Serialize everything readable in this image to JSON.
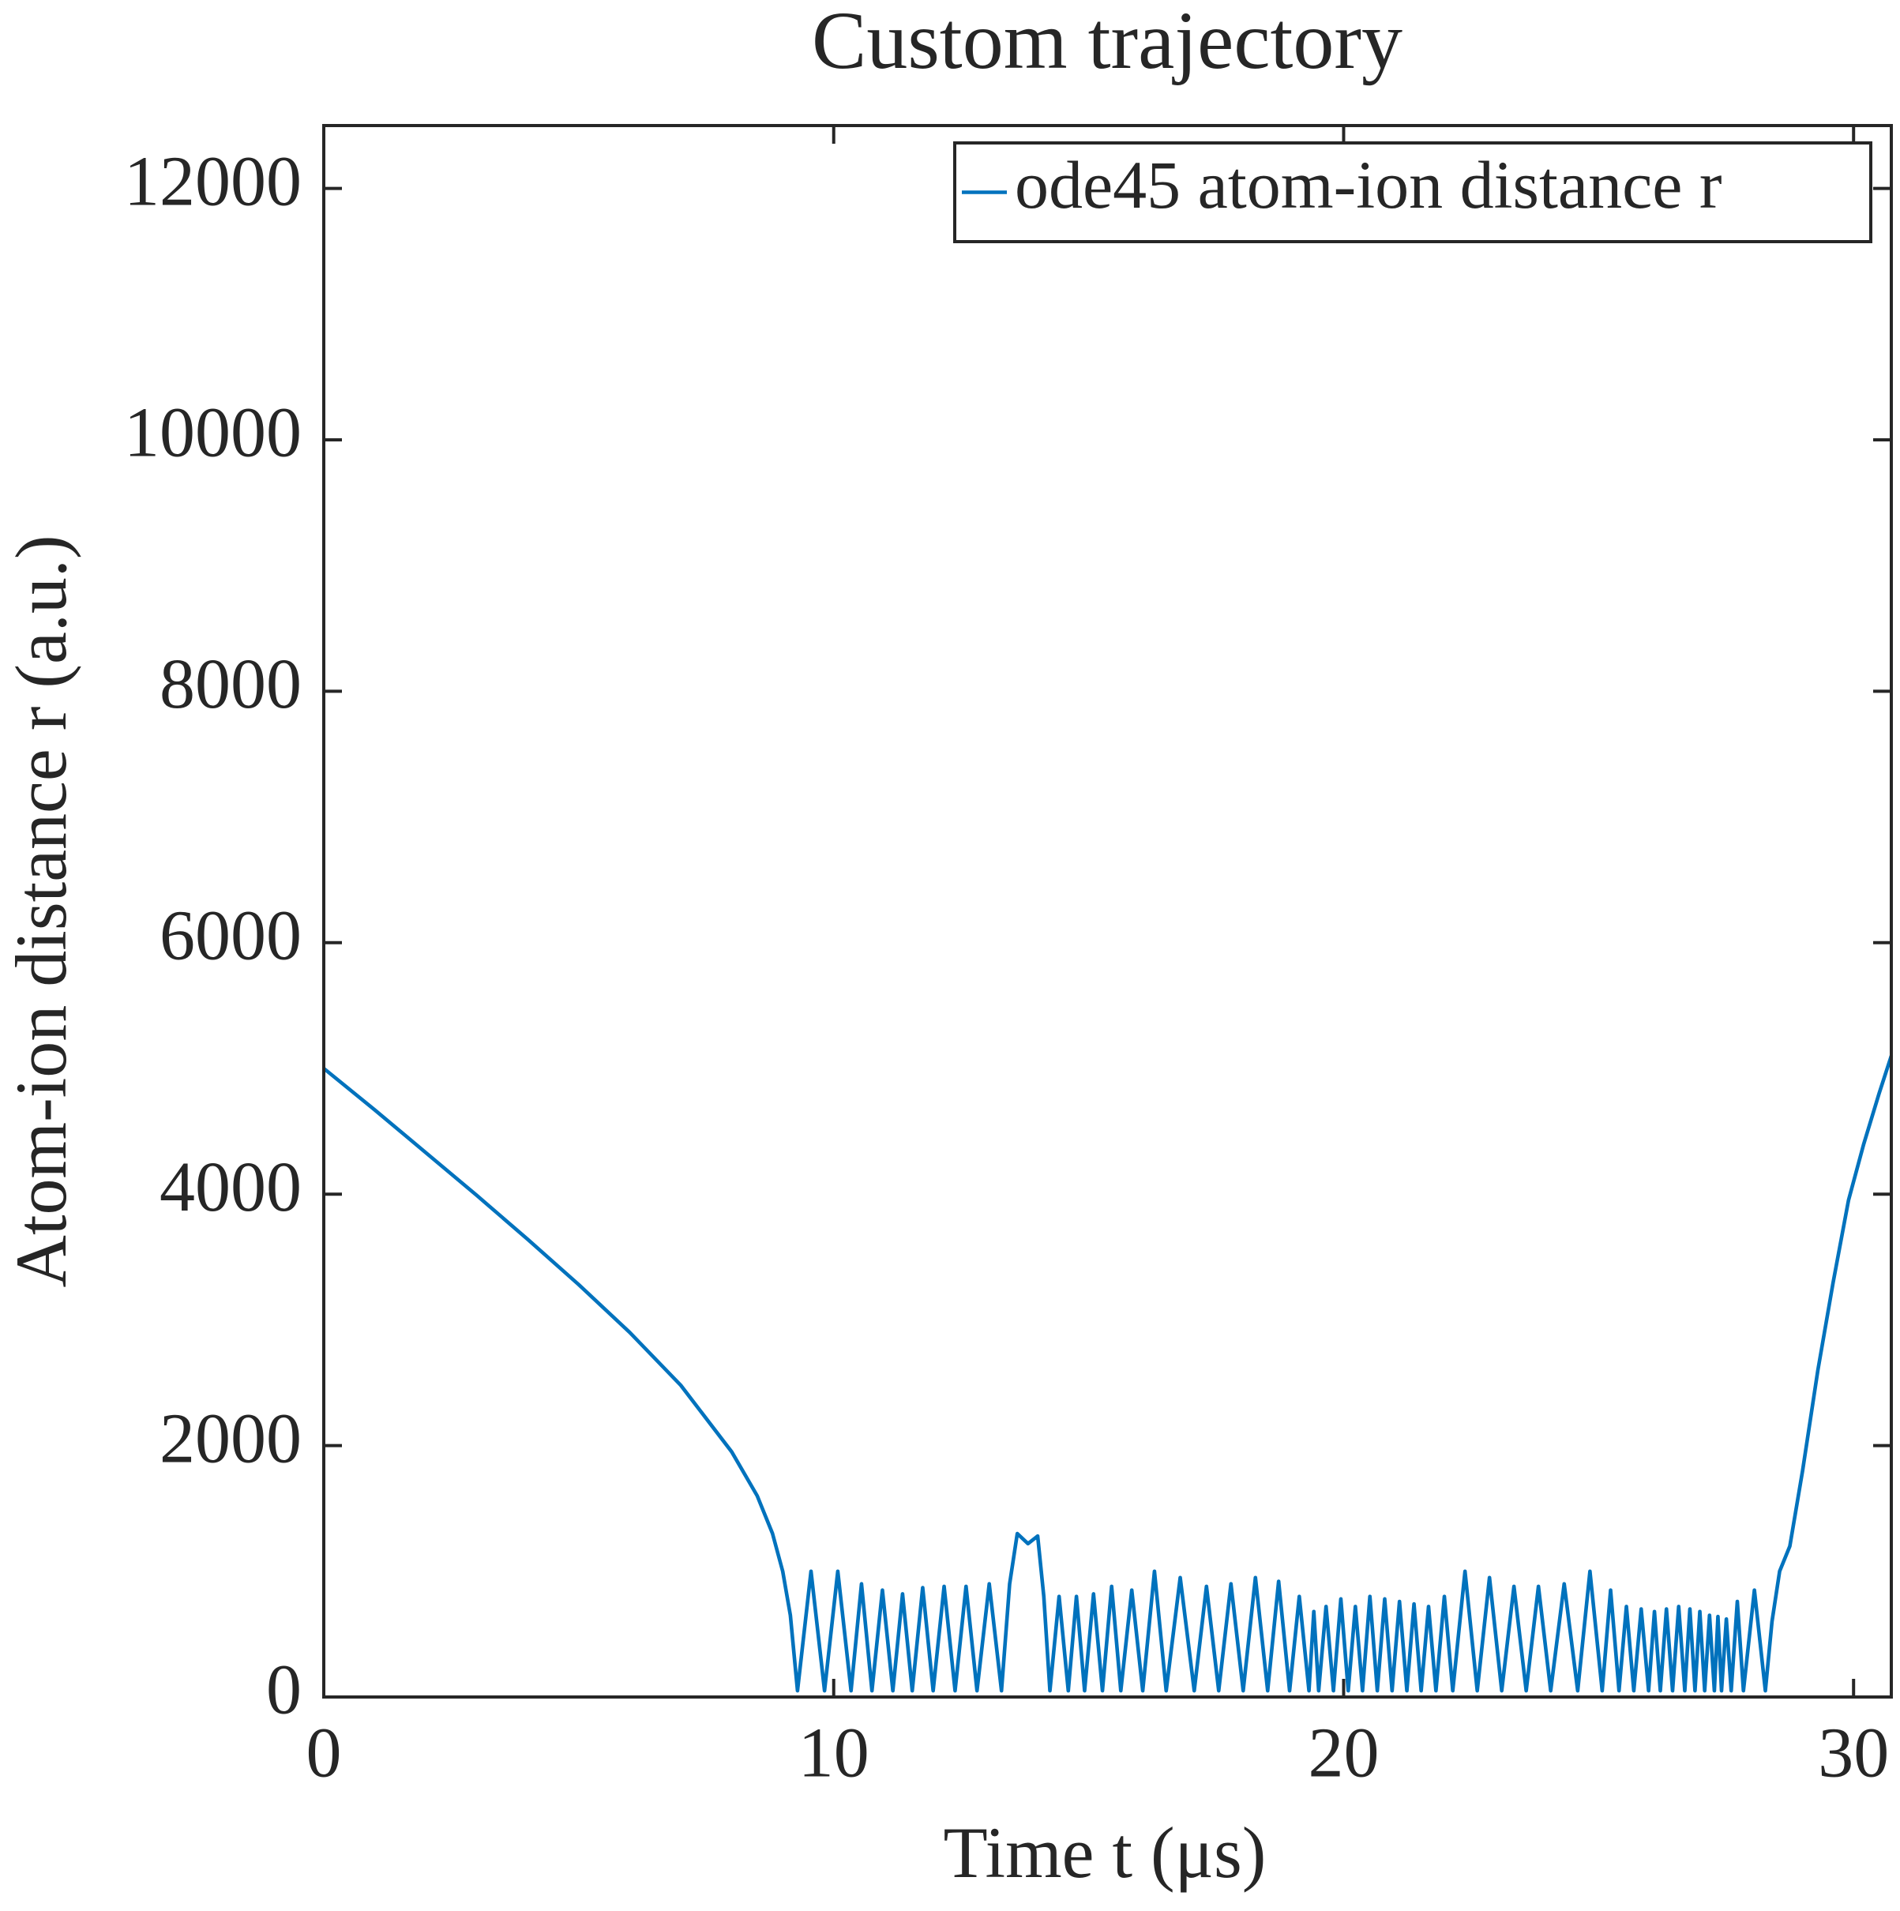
{
  "chart_data": {
    "type": "line",
    "title": "Custom trajectory",
    "x_label": "Time t (μs)",
    "y_label": "Atom-ion distance r (a.u.)",
    "xlim": [
      0,
      30.74
    ],
    "ylim": [
      0,
      12500
    ],
    "xticks": [
      0,
      10,
      20,
      30
    ],
    "yticks": [
      0,
      2000,
      4000,
      6000,
      8000,
      10000,
      12000
    ],
    "grid": false,
    "legend_position": "upper right",
    "series": [
      {
        "name": "ode45 atom-ion distance r",
        "color": "#0072bd",
        "x": [
          0,
          1,
          2,
          3,
          4,
          5,
          6,
          7,
          8,
          8.5,
          8.8,
          9.0,
          9.15,
          9.29,
          9.555,
          9.82,
          10.08,
          10.34,
          10.545,
          10.75,
          10.955,
          11.16,
          11.35,
          11.54,
          11.745,
          11.95,
          12.165,
          12.38,
          12.595,
          12.81,
          13.05,
          13.29,
          13.45,
          13.6,
          13.81,
          14.0,
          14.12,
          14.24,
          14.42,
          14.6,
          14.76,
          14.92,
          15.095,
          15.27,
          15.45,
          15.63,
          15.845,
          16.06,
          16.29,
          16.52,
          16.795,
          17.07,
          17.31,
          17.55,
          17.79,
          18.03,
          18.27,
          18.51,
          18.725,
          18.94,
          19.13,
          19.32,
          19.415,
          19.51,
          19.655,
          19.8,
          19.945,
          20.09,
          20.23,
          20.37,
          20.515,
          20.66,
          20.805,
          20.95,
          21.095,
          21.24,
          21.38,
          21.52,
          21.665,
          21.81,
          21.975,
          22.14,
          22.38,
          22.62,
          22.86,
          23.1,
          23.34,
          23.58,
          23.82,
          24.06,
          24.325,
          24.59,
          24.83,
          25.07,
          25.235,
          25.4,
          25.545,
          25.69,
          25.835,
          25.98,
          26.095,
          26.21,
          26.33,
          26.45,
          26.57,
          26.69,
          26.79,
          26.89,
          26.985,
          27.08,
          27.175,
          27.27,
          27.34,
          27.41,
          27.505,
          27.6,
          27.72,
          27.84,
          28.055,
          28.27,
          28.4,
          28.55,
          28.75,
          29.0,
          29.3,
          29.6,
          29.9,
          30.2,
          30.5,
          30.74
        ],
        "values": [
          5000,
          4670,
          4330,
          3990,
          3640,
          3280,
          2900,
          2480,
          1950,
          1600,
          1300,
          1000,
          650,
          50,
          1000,
          50,
          1000,
          50,
          900,
          50,
          850,
          50,
          820,
          50,
          870,
          50,
          880,
          50,
          880,
          50,
          900,
          50,
          900,
          1300,
          1220,
          1280,
          800,
          50,
          800,
          50,
          800,
          50,
          820,
          50,
          880,
          50,
          850,
          50,
          1000,
          50,
          950,
          50,
          880,
          50,
          900,
          50,
          950,
          50,
          920,
          50,
          800,
          50,
          680,
          50,
          720,
          50,
          780,
          50,
          720,
          50,
          800,
          50,
          780,
          50,
          760,
          50,
          740,
          50,
          720,
          50,
          800,
          50,
          1000,
          50,
          950,
          50,
          880,
          50,
          880,
          50,
          900,
          50,
          1000,
          50,
          850,
          50,
          720,
          50,
          700,
          50,
          680,
          50,
          700,
          50,
          720,
          50,
          700,
          50,
          680,
          50,
          650,
          50,
          640,
          50,
          620,
          50,
          760,
          50,
          850,
          50,
          600,
          1000,
          1200,
          1800,
          2600,
          3300,
          3950,
          4400,
          4800,
          5100
        ]
      }
    ]
  }
}
